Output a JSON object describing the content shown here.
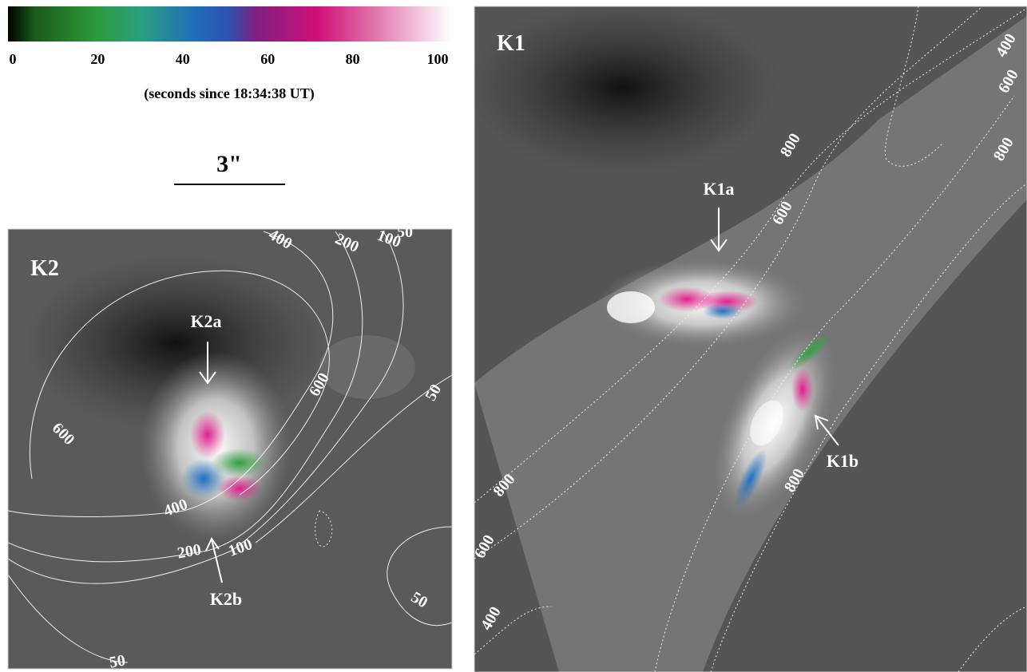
{
  "colorbar": {
    "ticks": [
      0,
      20,
      40,
      60,
      80,
      100
    ],
    "caption": "(seconds since 18:34:38 UT)"
  },
  "scale_bar": {
    "label": "3\""
  },
  "panels": [
    {
      "label": "K2",
      "annotations": [
        "K2a",
        "K2b"
      ],
      "contour_labels": [
        400,
        200,
        100,
        50,
        600,
        50,
        600,
        400,
        200,
        100,
        50,
        50
      ]
    },
    {
      "label": "K1",
      "annotations": [
        "K1a",
        "K1b"
      ],
      "contour_labels": [
        400,
        600,
        800,
        800,
        600,
        800,
        600,
        800,
        400
      ]
    }
  ]
}
